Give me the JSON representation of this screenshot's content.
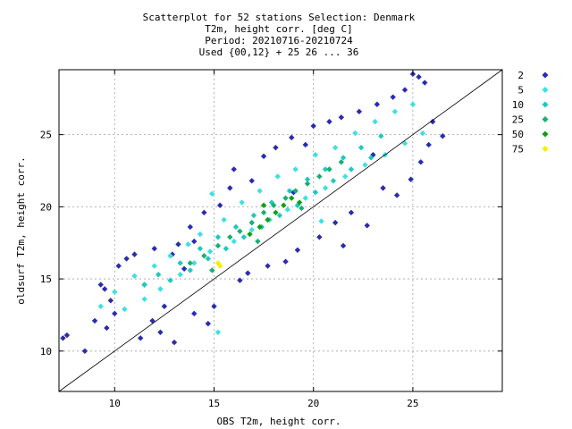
{
  "chart_data": {
    "type": "scatter",
    "title_lines": [
      "Scatterplot for   52 stations Selection: Denmark",
      "T2m, height corr. [deg C]",
      "Period: 20210716-20210724",
      "Used {00,12} + 25 26 ... 36"
    ],
    "xlabel": "OBS T2m, height corr.",
    "ylabel": "oldsurf T2m, height corr.",
    "xlim": [
      7.2,
      29.5
    ],
    "ylim": [
      7.2,
      29.5
    ],
    "xticks": [
      10,
      15,
      20,
      25
    ],
    "yticks": [
      10,
      15,
      20,
      25
    ],
    "grid": true,
    "diagonal_reference_line": true,
    "legend_position": "right",
    "legend": [
      {
        "label": "2",
        "color": "#2b2bb0"
      },
      {
        "label": "5",
        "color": "#3fe0e0"
      },
      {
        "label": "10",
        "color": "#1ec8c0"
      },
      {
        "label": "25",
        "color": "#18b070"
      },
      {
        "label": "50",
        "color": "#10a010"
      },
      {
        "label": "75",
        "color": "#f0f000"
      }
    ],
    "series": [
      {
        "name": "2",
        "color": "#2b2bb0",
        "points": [
          [
            7.4,
            10.9
          ],
          [
            7.6,
            11.1
          ],
          [
            8.5,
            10.0
          ],
          [
            9.0,
            12.1
          ],
          [
            9.3,
            14.6
          ],
          [
            9.5,
            14.3
          ],
          [
            9.8,
            13.5
          ],
          [
            10.2,
            15.9
          ],
          [
            10.6,
            16.4
          ],
          [
            11.0,
            16.7
          ],
          [
            11.5,
            14.6
          ],
          [
            11.9,
            12.1
          ],
          [
            12.3,
            11.3
          ],
          [
            12.5,
            13.1
          ],
          [
            12.9,
            16.7
          ],
          [
            13.2,
            17.4
          ],
          [
            13.5,
            15.7
          ],
          [
            13.8,
            18.6
          ],
          [
            14.0,
            17.6
          ],
          [
            14.5,
            19.6
          ],
          [
            14.7,
            11.9
          ],
          [
            15.0,
            13.1
          ],
          [
            15.3,
            20.1
          ],
          [
            15.8,
            21.3
          ],
          [
            16.3,
            14.9
          ],
          [
            16.7,
            15.4
          ],
          [
            16.9,
            21.8
          ],
          [
            17.5,
            23.5
          ],
          [
            17.7,
            15.9
          ],
          [
            18.1,
            24.1
          ],
          [
            18.6,
            16.2
          ],
          [
            18.9,
            24.8
          ],
          [
            19.2,
            17.0
          ],
          [
            19.6,
            24.3
          ],
          [
            20.0,
            25.6
          ],
          [
            20.3,
            17.9
          ],
          [
            20.8,
            25.9
          ],
          [
            21.1,
            18.9
          ],
          [
            21.4,
            26.2
          ],
          [
            21.9,
            19.6
          ],
          [
            22.3,
            26.6
          ],
          [
            22.7,
            18.7
          ],
          [
            23.2,
            27.1
          ],
          [
            23.5,
            21.3
          ],
          [
            24.0,
            27.6
          ],
          [
            24.2,
            20.8
          ],
          [
            24.6,
            28.1
          ],
          [
            24.9,
            21.9
          ],
          [
            25.0,
            29.2
          ],
          [
            25.3,
            29.0
          ],
          [
            25.4,
            23.1
          ],
          [
            25.6,
            28.6
          ],
          [
            25.8,
            24.3
          ],
          [
            26.0,
            25.9
          ],
          [
            26.5,
            24.9
          ],
          [
            12.0,
            17.1
          ],
          [
            16.0,
            22.6
          ],
          [
            21.5,
            17.3
          ],
          [
            19.0,
            21.0
          ],
          [
            10.0,
            12.6
          ],
          [
            23.0,
            23.6
          ],
          [
            14.0,
            12.6
          ],
          [
            9.6,
            11.6
          ],
          [
            11.3,
            10.9
          ],
          [
            13.0,
            10.6
          ]
        ]
      },
      {
        "name": "5",
        "color": "#3fe0e0",
        "points": [
          [
            9.3,
            13.1
          ],
          [
            10.0,
            14.1
          ],
          [
            10.5,
            12.9
          ],
          [
            11.0,
            15.2
          ],
          [
            11.5,
            13.6
          ],
          [
            12.0,
            15.9
          ],
          [
            12.3,
            14.3
          ],
          [
            12.8,
            16.6
          ],
          [
            13.3,
            15.3
          ],
          [
            13.7,
            17.4
          ],
          [
            14.0,
            16.1
          ],
          [
            14.3,
            18.1
          ],
          [
            14.8,
            16.9
          ],
          [
            15.2,
            11.3
          ],
          [
            15.5,
            19.1
          ],
          [
            16.0,
            17.6
          ],
          [
            16.4,
            20.3
          ],
          [
            16.9,
            18.4
          ],
          [
            17.3,
            21.1
          ],
          [
            17.8,
            19.1
          ],
          [
            18.2,
            22.1
          ],
          [
            18.7,
            19.8
          ],
          [
            19.1,
            22.6
          ],
          [
            19.6,
            20.6
          ],
          [
            20.1,
            23.6
          ],
          [
            20.6,
            21.3
          ],
          [
            21.1,
            24.1
          ],
          [
            21.6,
            22.1
          ],
          [
            22.1,
            25.1
          ],
          [
            22.6,
            22.9
          ],
          [
            23.1,
            25.9
          ],
          [
            23.6,
            23.6
          ],
          [
            24.1,
            26.6
          ],
          [
            24.6,
            24.4
          ],
          [
            25.0,
            27.1
          ],
          [
            25.5,
            25.1
          ],
          [
            14.9,
            20.9
          ],
          [
            20.4,
            19.0
          ]
        ]
      },
      {
        "name": "10",
        "color": "#1ec8c0",
        "points": [
          [
            11.5,
            14.6
          ],
          [
            12.2,
            15.3
          ],
          [
            12.8,
            14.9
          ],
          [
            13.3,
            16.1
          ],
          [
            13.8,
            15.6
          ],
          [
            14.3,
            17.1
          ],
          [
            14.7,
            16.4
          ],
          [
            15.2,
            17.9
          ],
          [
            15.6,
            17.1
          ],
          [
            16.1,
            18.6
          ],
          [
            16.5,
            17.9
          ],
          [
            17.0,
            19.4
          ],
          [
            17.4,
            18.6
          ],
          [
            17.9,
            20.3
          ],
          [
            18.3,
            19.4
          ],
          [
            18.8,
            21.1
          ],
          [
            19.2,
            20.1
          ],
          [
            19.7,
            21.9
          ],
          [
            20.1,
            21.0
          ],
          [
            20.6,
            22.6
          ],
          [
            21.0,
            21.8
          ],
          [
            21.5,
            23.4
          ],
          [
            21.9,
            22.6
          ],
          [
            22.4,
            24.1
          ],
          [
            22.9,
            23.4
          ],
          [
            23.4,
            24.9
          ]
        ]
      },
      {
        "name": "25",
        "color": "#18b070",
        "points": [
          [
            13.8,
            16.1
          ],
          [
            14.5,
            16.6
          ],
          [
            15.2,
            17.3
          ],
          [
            15.8,
            17.9
          ],
          [
            16.3,
            18.3
          ],
          [
            16.9,
            18.9
          ],
          [
            17.5,
            19.6
          ],
          [
            18.0,
            20.1
          ],
          [
            18.6,
            20.6
          ],
          [
            19.1,
            21.1
          ],
          [
            19.7,
            21.6
          ],
          [
            20.3,
            22.1
          ],
          [
            20.8,
            22.6
          ],
          [
            21.4,
            23.1
          ],
          [
            14.9,
            15.6
          ],
          [
            17.2,
            17.6
          ],
          [
            19.4,
            19.9
          ]
        ]
      },
      {
        "name": "50",
        "color": "#10a010",
        "points": [
          [
            16.8,
            18.1
          ],
          [
            17.3,
            18.6
          ],
          [
            17.7,
            19.1
          ],
          [
            18.1,
            19.6
          ],
          [
            18.5,
            20.1
          ],
          [
            18.9,
            20.6
          ],
          [
            19.3,
            20.3
          ],
          [
            17.5,
            20.1
          ]
        ]
      },
      {
        "name": "75",
        "color": "#f0f000",
        "points": [
          [
            15.2,
            16.1
          ],
          [
            15.3,
            15.9
          ]
        ]
      }
    ]
  }
}
